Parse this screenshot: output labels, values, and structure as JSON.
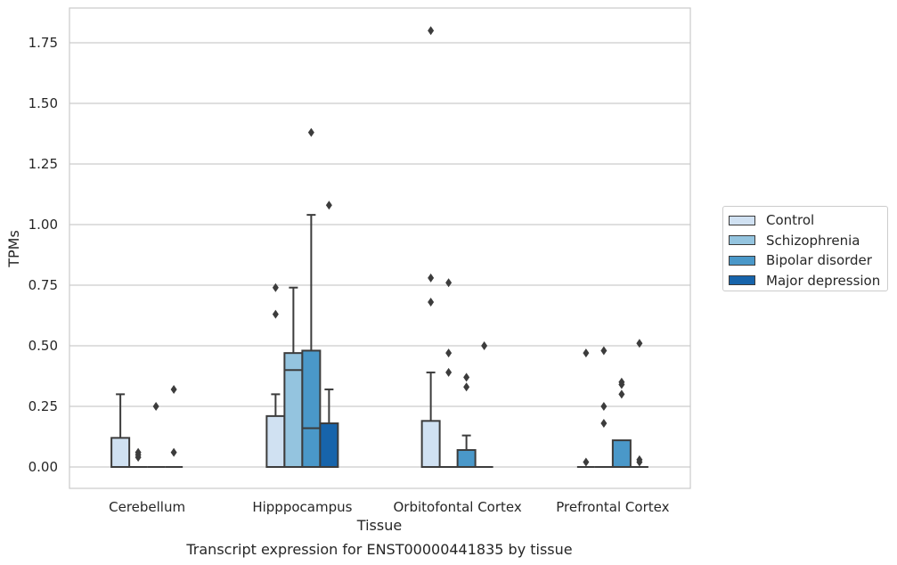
{
  "chart_data": {
    "type": "box",
    "title": "Transcript expression for ENST00000441835 by tissue",
    "xlabel": "Tissue",
    "ylabel": "TPMs",
    "ylim": [
      -0.09,
      1.89
    ],
    "yticks": [
      "0.00",
      "0.25",
      "0.50",
      "0.75",
      "1.00",
      "1.25",
      "1.50",
      "1.75"
    ],
    "categories": [
      "Cerebellum",
      "Hipppocampus",
      "Orbitofontal Cortex",
      "Prefrontal Cortex"
    ],
    "grid": "horizontal",
    "legend_position": "right",
    "series": [
      {
        "name": "Control",
        "color": "#d0e1f2",
        "boxes": [
          {
            "min": 0,
            "q1": 0,
            "median": 0,
            "q3": 0.12,
            "max": 0.3,
            "outliers": []
          },
          {
            "min": 0,
            "q1": 0,
            "median": 0,
            "q3": 0.21,
            "max": 0.3,
            "outliers": [
              0.63,
              0.74
            ]
          },
          {
            "min": 0,
            "q1": 0,
            "median": 0,
            "q3": 0.19,
            "max": 0.39,
            "outliers": [
              0.68,
              0.78,
              1.8
            ]
          },
          {
            "min": 0,
            "q1": 0,
            "median": 0,
            "q3": 0,
            "max": 0,
            "outliers": [
              0.02,
              0.47
            ]
          }
        ]
      },
      {
        "name": "Schizophrenia",
        "color": "#94c4df",
        "boxes": [
          {
            "min": 0,
            "q1": 0,
            "median": 0,
            "q3": 0,
            "max": 0,
            "outliers": [
              0.04,
              0.05,
              0.06
            ]
          },
          {
            "min": 0,
            "q1": 0,
            "median": 0.4,
            "q3": 0.47,
            "max": 0.74,
            "outliers": []
          },
          {
            "min": 0,
            "q1": 0,
            "median": 0,
            "q3": 0,
            "max": 0,
            "outliers": [
              0.39,
              0.47,
              0.76
            ]
          },
          {
            "min": 0,
            "q1": 0,
            "median": 0,
            "q3": 0,
            "max": 0,
            "outliers": [
              0.18,
              0.25,
              0.48
            ]
          }
        ]
      },
      {
        "name": "Bipolar disorder",
        "color": "#4a98c9",
        "boxes": [
          {
            "min": 0,
            "q1": 0,
            "median": 0,
            "q3": 0,
            "max": 0,
            "outliers": [
              0.25
            ]
          },
          {
            "min": 0,
            "q1": 0,
            "median": 0.16,
            "q3": 0.48,
            "max": 1.04,
            "outliers": [
              1.38
            ]
          },
          {
            "min": 0,
            "q1": 0,
            "median": 0,
            "q3": 0.07,
            "max": 0.13,
            "outliers": [
              0.33,
              0.37
            ]
          },
          {
            "min": 0,
            "q1": 0,
            "median": 0,
            "q3": 0.11,
            "max": 0.11,
            "outliers": [
              0.3,
              0.34,
              0.35
            ]
          }
        ]
      },
      {
        "name": "Major depression",
        "color": "#1764ab",
        "boxes": [
          {
            "min": 0,
            "q1": 0,
            "median": 0,
            "q3": 0,
            "max": 0,
            "outliers": [
              0.06,
              0.32
            ]
          },
          {
            "min": 0,
            "q1": 0,
            "median": 0,
            "q3": 0.18,
            "max": 0.32,
            "outliers": [
              1.08
            ]
          },
          {
            "min": 0,
            "q1": 0,
            "median": 0,
            "q3": 0,
            "max": 0,
            "outliers": [
              0.5
            ]
          },
          {
            "min": 0,
            "q1": 0,
            "median": 0,
            "q3": 0,
            "max": 0,
            "outliers": [
              0.02,
              0.03,
              0.51
            ]
          }
        ]
      }
    ]
  }
}
